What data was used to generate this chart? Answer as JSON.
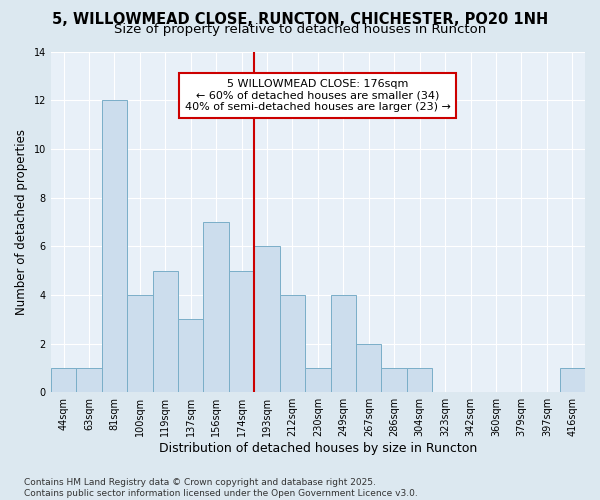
{
  "title": "5, WILLOWMEAD CLOSE, RUNCTON, CHICHESTER, PO20 1NH",
  "subtitle": "Size of property relative to detached houses in Runcton",
  "xlabel": "Distribution of detached houses by size in Runcton",
  "ylabel": "Number of detached properties",
  "categories": [
    "44sqm",
    "63sqm",
    "81sqm",
    "100sqm",
    "119sqm",
    "137sqm",
    "156sqm",
    "174sqm",
    "193sqm",
    "212sqm",
    "230sqm",
    "249sqm",
    "267sqm",
    "286sqm",
    "304sqm",
    "323sqm",
    "342sqm",
    "360sqm",
    "379sqm",
    "397sqm",
    "416sqm"
  ],
  "values": [
    1,
    1,
    12,
    4,
    5,
    3,
    7,
    5,
    6,
    4,
    1,
    4,
    2,
    1,
    1,
    0,
    0,
    0,
    0,
    0,
    1
  ],
  "bar_color": "#ccdded",
  "bar_edge_color": "#7aaec8",
  "vline_index": 7,
  "vline_color": "#cc0000",
  "annotation_text": "5 WILLOWMEAD CLOSE: 176sqm\n← 60% of detached houses are smaller (34)\n40% of semi-detached houses are larger (23) →",
  "annotation_box_facecolor": "#ffffff",
  "annotation_box_edgecolor": "#cc0000",
  "ylim": [
    0,
    14
  ],
  "yticks": [
    0,
    2,
    4,
    6,
    8,
    10,
    12,
    14
  ],
  "fig_facecolor": "#dce8f0",
  "plot_facecolor": "#e8f0f8",
  "grid_color": "#ffffff",
  "title_fontsize": 10.5,
  "subtitle_fontsize": 9.5,
  "ylabel_fontsize": 8.5,
  "xlabel_fontsize": 9,
  "tick_fontsize": 7,
  "annotation_fontsize": 8,
  "footnote_fontsize": 6.5,
  "footnote": "Contains HM Land Registry data © Crown copyright and database right 2025.\nContains public sector information licensed under the Open Government Licence v3.0."
}
